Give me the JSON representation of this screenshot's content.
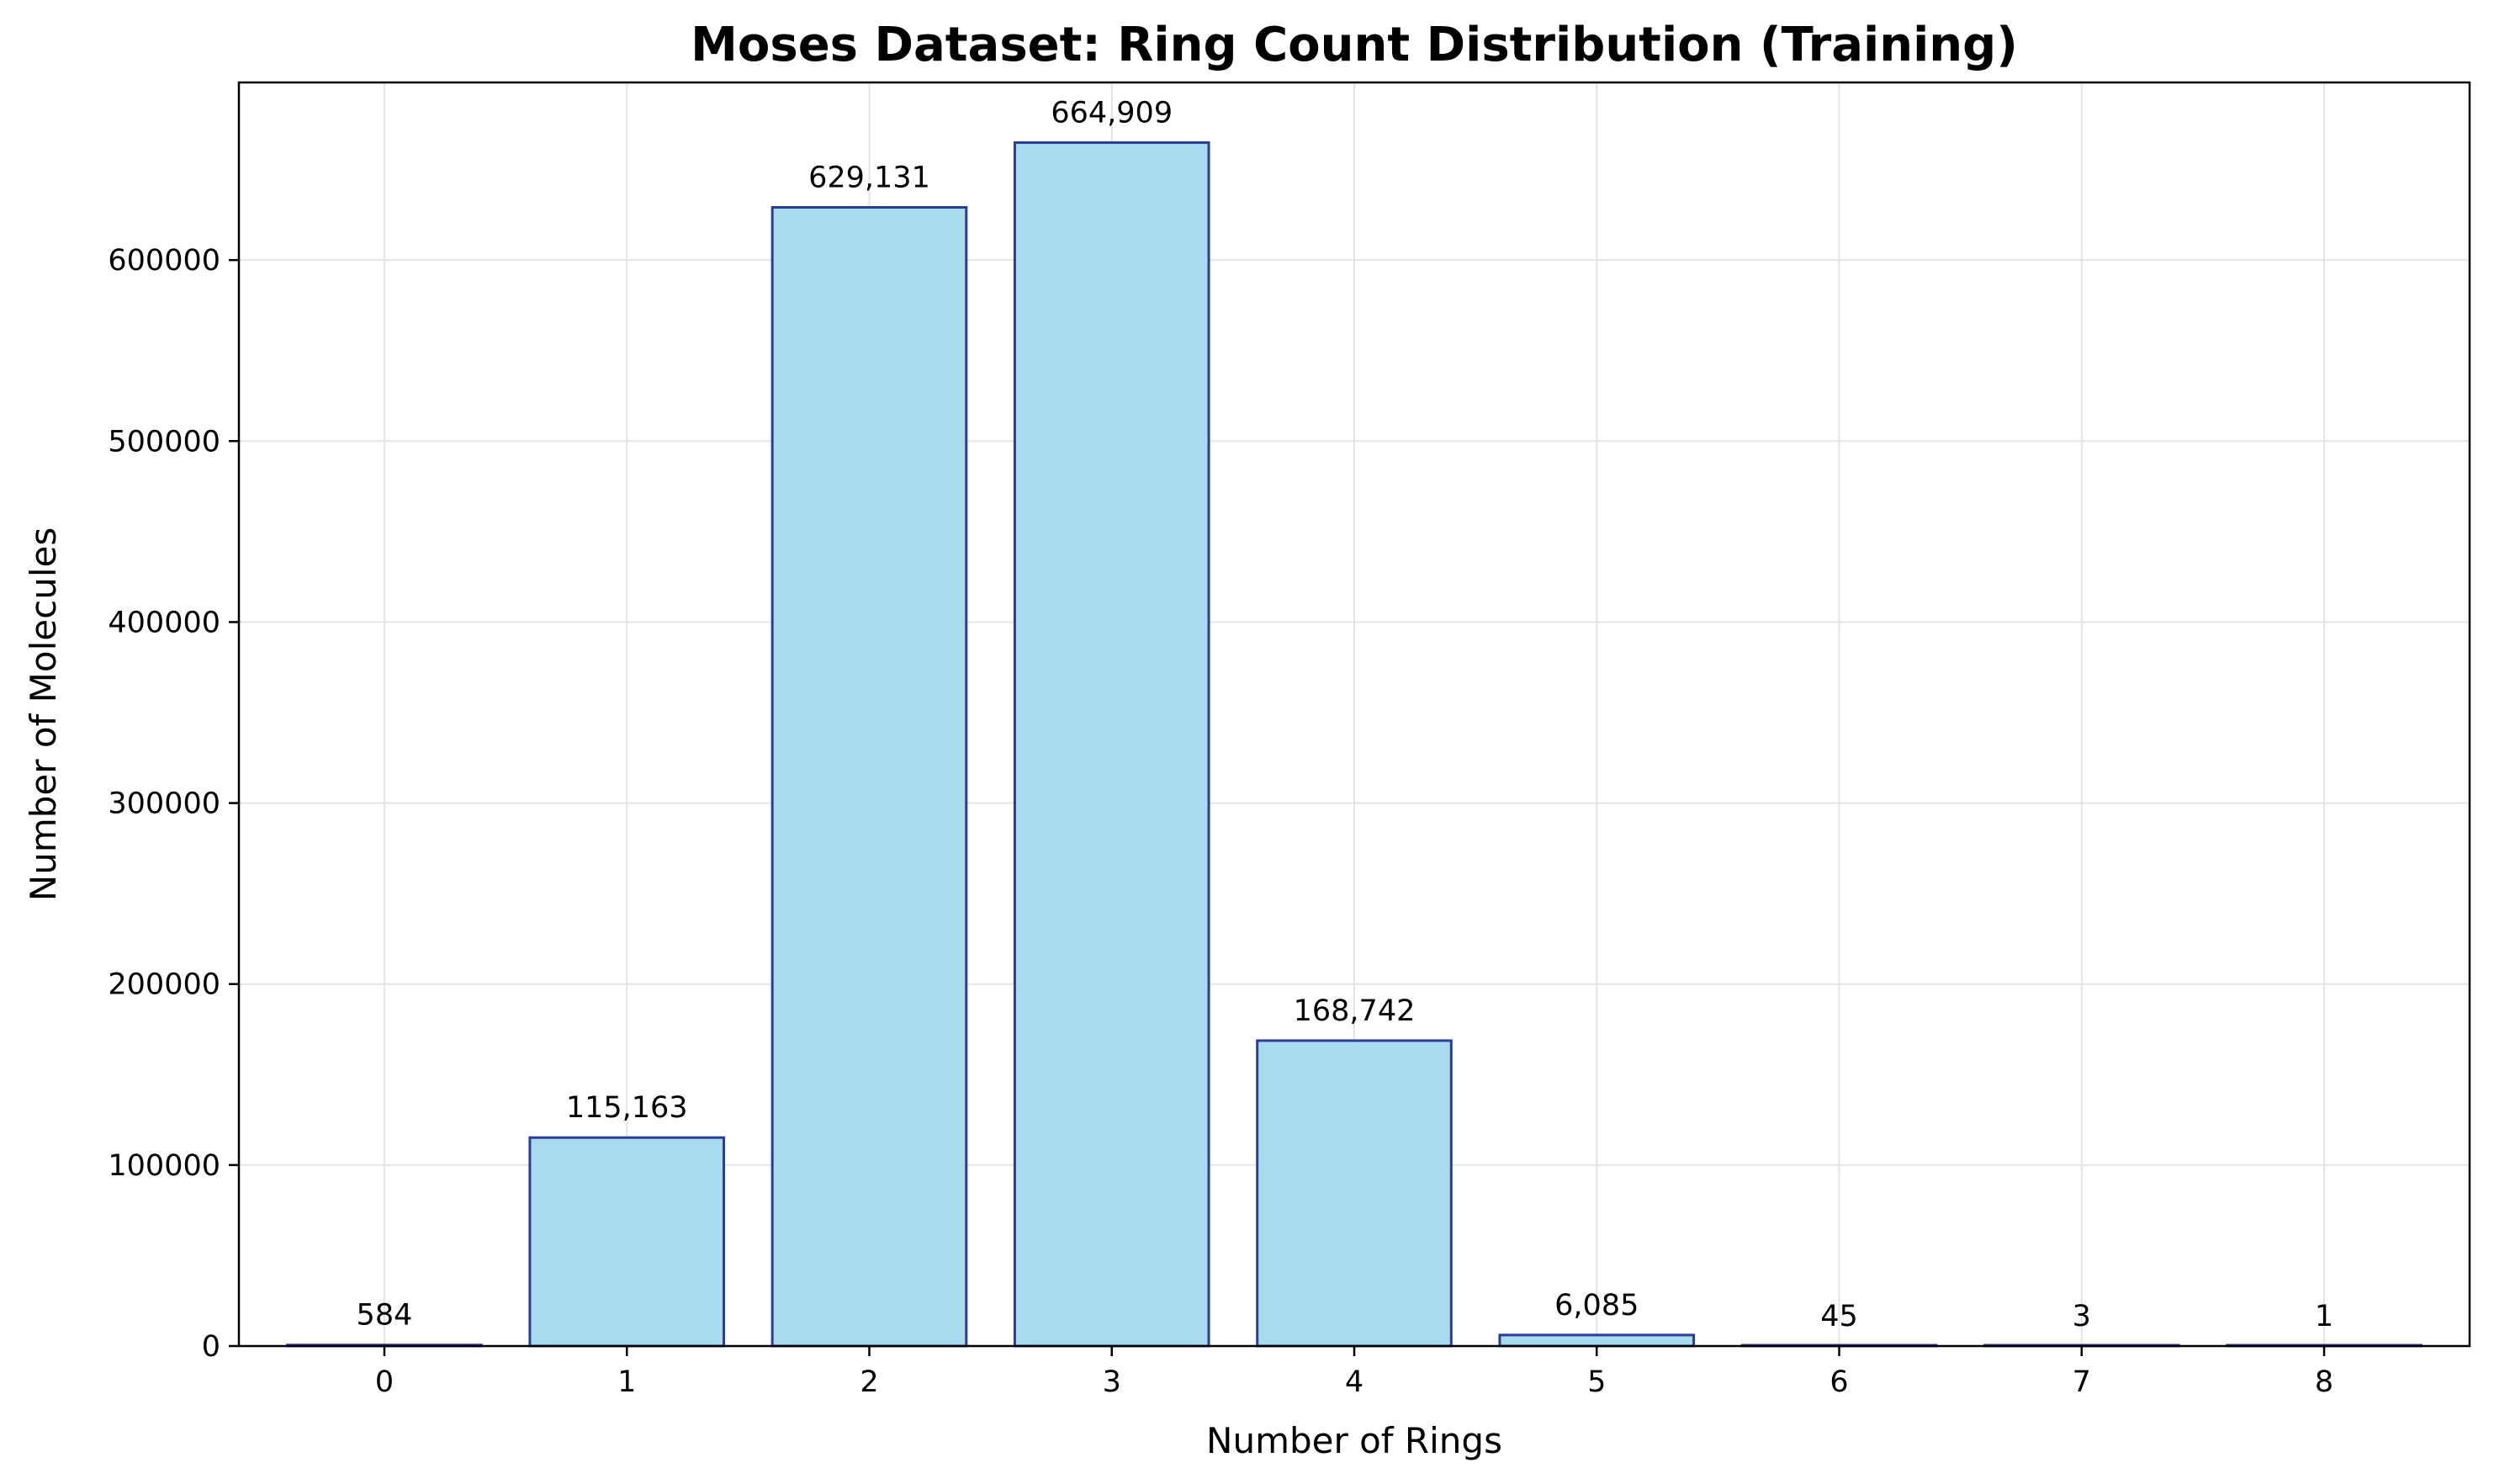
{
  "chart_data": {
    "type": "bar",
    "title": "Moses Dataset: Ring Count Distribution (Training)",
    "xlabel": "Number of Rings",
    "ylabel": "Number of Molecules",
    "categories": [
      "0",
      "1",
      "2",
      "3",
      "4",
      "5",
      "6",
      "7",
      "8"
    ],
    "values": [
      584,
      115163,
      629131,
      664909,
      168742,
      6085,
      45,
      3,
      1
    ],
    "value_labels": [
      "584",
      "115,163",
      "629,131",
      "664,909",
      "168,742",
      "6,085",
      "45",
      "3",
      "1"
    ],
    "ylim": [
      0,
      698154
    ],
    "yticks": [
      0,
      100000,
      200000,
      300000,
      400000,
      500000,
      600000
    ],
    "ytick_labels": [
      "0",
      "100000",
      "200000",
      "300000",
      "400000",
      "500000",
      "600000"
    ],
    "grid": true,
    "colors": {
      "bar_fill": "#a8dbee",
      "bar_edge": "#2b3d9a",
      "grid": "#e4e4e4"
    }
  }
}
